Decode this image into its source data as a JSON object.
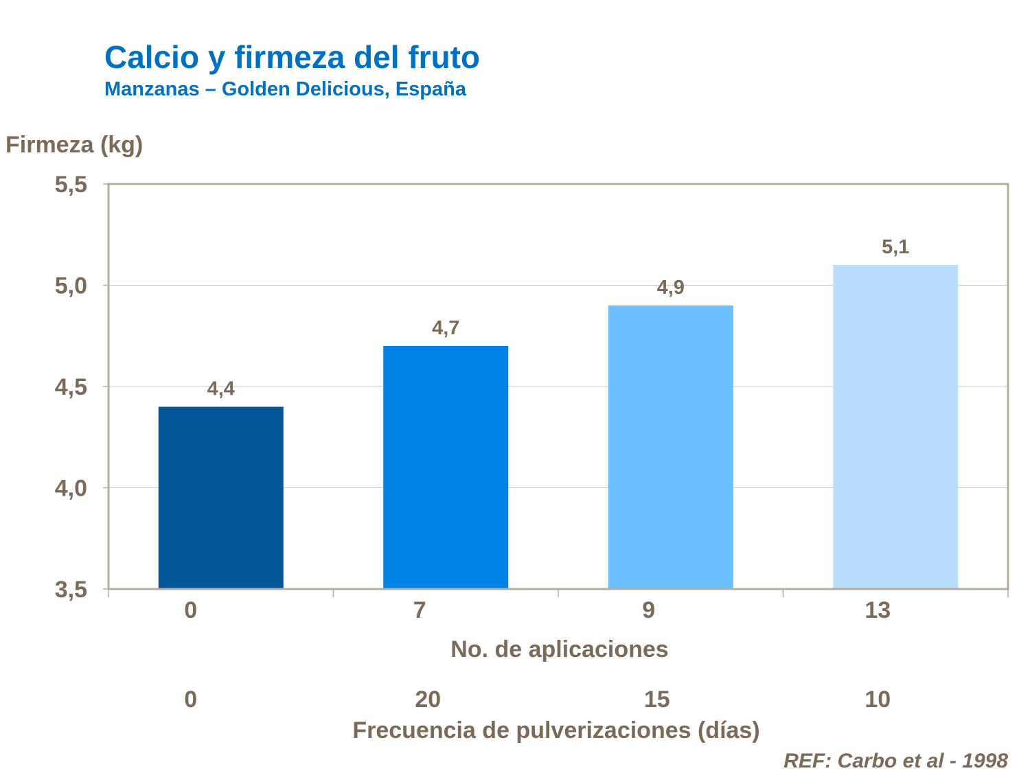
{
  "chart_data": {
    "type": "bar",
    "title": "Calcio y firmeza del fruto",
    "subtitle": "Manzanas – Golden Delicious, España",
    "ylabel": "Firmeza (kg)",
    "xlabel": "No. de aplicaciones",
    "xlabel_secondary": "Frecuencia de pulverizaciones (días)",
    "categories": [
      "0",
      "7",
      "9",
      "13"
    ],
    "secondary_categories": [
      "0",
      "20",
      "15",
      "10"
    ],
    "values": [
      4.4,
      4.7,
      4.9,
      5.1
    ],
    "data_labels": [
      "4,4",
      "4,7",
      "4,9",
      "5,1"
    ],
    "bar_colors": [
      "#005696",
      "#0083e6",
      "#6abfff",
      "#b8deff"
    ],
    "ylim": [
      3.5,
      5.5
    ],
    "yticks": [
      3.5,
      4.0,
      4.5,
      5.0,
      5.5
    ],
    "ytick_labels": [
      "3,5",
      "4,0",
      "4,5",
      "5,0",
      "5,5"
    ],
    "grid": true,
    "reference": "REF: Carbo et al - 1998"
  },
  "colors": {
    "title": "#0070c0",
    "text": "#7b6a58",
    "axis": "#b5aca2",
    "grid": "#c8c8c8"
  }
}
